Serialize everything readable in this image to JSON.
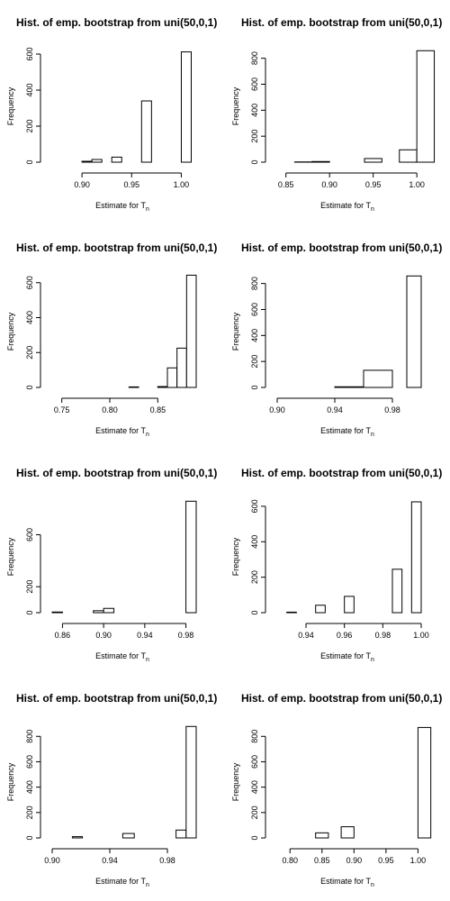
{
  "title_text": "Hist. of emp. bootstrap from uni(50,0,1)",
  "ylabel": "Frequency",
  "xlabel_main": "Estimate for T",
  "xlabel_sub": "n",
  "chart_data": [
    {
      "type": "bar",
      "title": "Hist. of emp. bootstrap from uni(50,0,1)",
      "xlabel": "Estimate for T_n",
      "ylabel": "Frequency",
      "xlim": [
        0.87,
        1.015
      ],
      "ylim": [
        0,
        620
      ],
      "xticks": [
        0.9,
        0.95,
        1.0
      ],
      "xtick_labels": [
        "0.90",
        "0.95",
        "1.00"
      ],
      "yticks": [
        0,
        200,
        400,
        600
      ],
      "ytick_labels": [
        "0",
        "200",
        "400",
        "600"
      ],
      "bins": [
        {
          "x0": 0.88,
          "x1": 0.89,
          "count": 0
        },
        {
          "x0": 0.89,
          "x1": 0.9,
          "count": 0
        },
        {
          "x0": 0.9,
          "x1": 0.91,
          "count": 5
        },
        {
          "x0": 0.91,
          "x1": 0.92,
          "count": 15
        },
        {
          "x0": 0.92,
          "x1": 0.93,
          "count": 0
        },
        {
          "x0": 0.93,
          "x1": 0.94,
          "count": 28
        },
        {
          "x0": 0.94,
          "x1": 0.95,
          "count": 0
        },
        {
          "x0": 0.95,
          "x1": 0.96,
          "count": 0
        },
        {
          "x0": 0.96,
          "x1": 0.97,
          "count": 340
        },
        {
          "x0": 0.97,
          "x1": 0.98,
          "count": 0
        },
        {
          "x0": 0.98,
          "x1": 0.99,
          "count": 0
        },
        {
          "x0": 0.99,
          "x1": 1.0,
          "count": 0
        },
        {
          "x0": 1.0,
          "x1": 1.01,
          "count": 612
        }
      ]
    },
    {
      "type": "bar",
      "title": "Hist. of emp. bootstrap from uni(50,0,1)",
      "xlabel": "Estimate for T_n",
      "ylabel": "Frequency",
      "xlim": [
        0.84,
        1.005
      ],
      "ylim": [
        0,
        860
      ],
      "xticks": [
        0.85,
        0.9,
        0.95,
        1.0
      ],
      "xtick_labels": [
        "0.85",
        "0.90",
        "0.95",
        "1.00"
      ],
      "yticks": [
        0,
        200,
        400,
        600,
        800
      ],
      "ytick_labels": [
        "0",
        "200",
        "400",
        "600",
        "800"
      ],
      "bins": [
        {
          "x0": 0.84,
          "x1": 0.86,
          "count": 0
        },
        {
          "x0": 0.86,
          "x1": 0.88,
          "count": 2
        },
        {
          "x0": 0.88,
          "x1": 0.9,
          "count": 5
        },
        {
          "x0": 0.9,
          "x1": 0.92,
          "count": 0
        },
        {
          "x0": 0.92,
          "x1": 0.94,
          "count": 0
        },
        {
          "x0": 0.94,
          "x1": 0.96,
          "count": 28
        },
        {
          "x0": 0.96,
          "x1": 0.98,
          "count": 0
        },
        {
          "x0": 0.98,
          "x1": 1.0,
          "count": 95
        },
        {
          "x0": 1.0,
          "x1": 1.02,
          "count": 858
        }
      ]
    },
    {
      "type": "bar",
      "title": "Hist. of emp. bootstrap from uni(50,0,1)",
      "xlabel": "Estimate for T_n",
      "ylabel": "Frequency",
      "xlim": [
        0.74,
        0.89
      ],
      "ylim": [
        0,
        640
      ],
      "xticks": [
        0.75,
        0.8,
        0.85
      ],
      "xtick_labels": [
        "0.75",
        "0.80",
        "0.85"
      ],
      "yticks": [
        0,
        200,
        400,
        600
      ],
      "ytick_labels": [
        "0",
        "200",
        "400",
        "600"
      ],
      "bins": [
        {
          "x0": 0.74,
          "x1": 0.75,
          "count": 0
        },
        {
          "x0": 0.75,
          "x1": 0.76,
          "count": 0
        },
        {
          "x0": 0.76,
          "x1": 0.77,
          "count": 0
        },
        {
          "x0": 0.77,
          "x1": 0.78,
          "count": 0
        },
        {
          "x0": 0.78,
          "x1": 0.79,
          "count": 0
        },
        {
          "x0": 0.79,
          "x1": 0.8,
          "count": 0
        },
        {
          "x0": 0.8,
          "x1": 0.81,
          "count": 0
        },
        {
          "x0": 0.81,
          "x1": 0.82,
          "count": 0
        },
        {
          "x0": 0.82,
          "x1": 0.83,
          "count": 3
        },
        {
          "x0": 0.83,
          "x1": 0.84,
          "count": 0
        },
        {
          "x0": 0.84,
          "x1": 0.85,
          "count": 0
        },
        {
          "x0": 0.85,
          "x1": 0.86,
          "count": 5
        },
        {
          "x0": 0.86,
          "x1": 0.87,
          "count": 112
        },
        {
          "x0": 0.87,
          "x1": 0.88,
          "count": 225
        },
        {
          "x0": 0.88,
          "x1": 0.89,
          "count": 643
        }
      ]
    },
    {
      "type": "bar",
      "title": "Hist. of emp. bootstrap from uni(50,0,1)",
      "xlabel": "Estimate for T_n",
      "ylabel": "Frequency",
      "xlim": [
        0.9,
        1.0
      ],
      "ylim": [
        0,
        860
      ],
      "xticks": [
        0.9,
        0.94,
        0.98
      ],
      "xtick_labels": [
        "0.90",
        "0.94",
        "0.98"
      ],
      "yticks": [
        0,
        200,
        400,
        600,
        800
      ],
      "ytick_labels": [
        "0",
        "200",
        "400",
        "600",
        "800"
      ],
      "bins": [
        {
          "x0": 0.9,
          "x1": 0.92,
          "count": 0
        },
        {
          "x0": 0.92,
          "x1": 0.94,
          "count": 0
        },
        {
          "x0": 0.94,
          "x1": 0.96,
          "count": 5
        },
        {
          "x0": 0.96,
          "x1": 0.98,
          "count": 132
        },
        {
          "x0": 0.98,
          "x1": 0.99,
          "count": 0
        },
        {
          "x0": 0.99,
          "x1": 1.0,
          "count": 858
        }
      ]
    },
    {
      "type": "bar",
      "title": "Hist. of emp. bootstrap from uni(50,0,1)",
      "xlabel": "Estimate for T_n",
      "ylabel": "Frequency",
      "xlim": [
        0.85,
        0.99
      ],
      "ylim": [
        0,
        860
      ],
      "xticks": [
        0.86,
        0.9,
        0.94,
        0.98
      ],
      "xtick_labels": [
        "0.86",
        "0.90",
        "0.94",
        "0.98"
      ],
      "yticks": [
        0,
        200,
        600
      ],
      "ytick_labels": [
        "0",
        "200",
        "600"
      ],
      "bins": [
        {
          "x0": 0.85,
          "x1": 0.86,
          "count": 5
        },
        {
          "x0": 0.86,
          "x1": 0.87,
          "count": 0
        },
        {
          "x0": 0.87,
          "x1": 0.88,
          "count": 0
        },
        {
          "x0": 0.88,
          "x1": 0.89,
          "count": 0
        },
        {
          "x0": 0.89,
          "x1": 0.9,
          "count": 15
        },
        {
          "x0": 0.9,
          "x1": 0.91,
          "count": 33
        },
        {
          "x0": 0.91,
          "x1": 0.92,
          "count": 0
        },
        {
          "x0": 0.92,
          "x1": 0.93,
          "count": 0
        },
        {
          "x0": 0.93,
          "x1": 0.94,
          "count": 0
        },
        {
          "x0": 0.94,
          "x1": 0.95,
          "count": 0
        },
        {
          "x0": 0.95,
          "x1": 0.96,
          "count": 0
        },
        {
          "x0": 0.96,
          "x1": 0.97,
          "count": 0
        },
        {
          "x0": 0.97,
          "x1": 0.98,
          "count": 0
        },
        {
          "x0": 0.98,
          "x1": 0.99,
          "count": 858
        }
      ]
    },
    {
      "type": "bar",
      "title": "Hist. of emp. bootstrap from uni(50,0,1)",
      "xlabel": "Estimate for T_n",
      "ylabel": "Frequency",
      "xlim": [
        0.925,
        1.0
      ],
      "ylim": [
        0,
        630
      ],
      "xticks": [
        0.94,
        0.96,
        0.98,
        1.0
      ],
      "xtick_labels": [
        "0.94",
        "0.96",
        "0.98",
        "1.00"
      ],
      "yticks": [
        0,
        200,
        400,
        600
      ],
      "ytick_labels": [
        "0",
        "200",
        "400",
        "600"
      ],
      "bins": [
        {
          "x0": 0.93,
          "x1": 0.935,
          "count": 3
        },
        {
          "x0": 0.935,
          "x1": 0.94,
          "count": 0
        },
        {
          "x0": 0.94,
          "x1": 0.945,
          "count": 0
        },
        {
          "x0": 0.945,
          "x1": 0.95,
          "count": 42
        },
        {
          "x0": 0.95,
          "x1": 0.955,
          "count": 0
        },
        {
          "x0": 0.955,
          "x1": 0.96,
          "count": 0
        },
        {
          "x0": 0.96,
          "x1": 0.965,
          "count": 92
        },
        {
          "x0": 0.965,
          "x1": 0.97,
          "count": 0
        },
        {
          "x0": 0.97,
          "x1": 0.975,
          "count": 0
        },
        {
          "x0": 0.975,
          "x1": 0.98,
          "count": 0
        },
        {
          "x0": 0.98,
          "x1": 0.985,
          "count": 0
        },
        {
          "x0": 0.985,
          "x1": 0.99,
          "count": 245
        },
        {
          "x0": 0.99,
          "x1": 0.995,
          "count": 0
        },
        {
          "x0": 0.995,
          "x1": 1.0,
          "count": 625
        }
      ]
    },
    {
      "type": "bar",
      "title": "Hist. of emp. bootstrap from uni(50,0,1)",
      "xlabel": "Estimate for T_n",
      "ylabel": "Frequency",
      "xlim": [
        0.9,
        1.0
      ],
      "ylim": [
        0,
        880
      ],
      "xticks": [
        0.9,
        0.94,
        0.98
      ],
      "xtick_labels": [
        "0.90",
        "0.94",
        "0.98"
      ],
      "yticks": [
        0,
        200,
        400,
        600,
        800
      ],
      "ytick_labels": [
        "0",
        "200",
        "400",
        "600",
        "800"
      ],
      "bins": [
        {
          "x0": 0.9,
          "x1": 0.907,
          "count": 0
        },
        {
          "x0": 0.907,
          "x1": 0.914,
          "count": 0
        },
        {
          "x0": 0.914,
          "x1": 0.921,
          "count": 10
        },
        {
          "x0": 0.921,
          "x1": 0.928,
          "count": 0
        },
        {
          "x0": 0.928,
          "x1": 0.935,
          "count": 0
        },
        {
          "x0": 0.935,
          "x1": 0.942,
          "count": 0
        },
        {
          "x0": 0.942,
          "x1": 0.949,
          "count": 0
        },
        {
          "x0": 0.949,
          "x1": 0.957,
          "count": 35
        },
        {
          "x0": 0.957,
          "x1": 0.964,
          "count": 0
        },
        {
          "x0": 0.964,
          "x1": 0.971,
          "count": 0
        },
        {
          "x0": 0.971,
          "x1": 0.978,
          "count": 0
        },
        {
          "x0": 0.978,
          "x1": 0.986,
          "count": 0
        },
        {
          "x0": 0.986,
          "x1": 0.993,
          "count": 62
        },
        {
          "x0": 0.993,
          "x1": 1.0,
          "count": 878
        }
      ]
    },
    {
      "type": "bar",
      "title": "Hist. of emp. bootstrap from uni(50,0,1)",
      "xlabel": "Estimate for T_n",
      "ylabel": "Frequency",
      "xlim": [
        0.78,
        1.005
      ],
      "ylim": [
        0,
        880
      ],
      "xticks": [
        0.8,
        0.85,
        0.9,
        0.95,
        1.0
      ],
      "xtick_labels": [
        "0.80",
        "0.85",
        "0.90",
        "0.95",
        "1.00"
      ],
      "yticks": [
        0,
        200,
        400,
        600,
        800
      ],
      "ytick_labels": [
        "0",
        "200",
        "400",
        "600",
        "800"
      ],
      "bins": [
        {
          "x0": 0.78,
          "x1": 0.8,
          "count": 0
        },
        {
          "x0": 0.8,
          "x1": 0.82,
          "count": 0
        },
        {
          "x0": 0.82,
          "x1": 0.84,
          "count": 0
        },
        {
          "x0": 0.84,
          "x1": 0.86,
          "count": 40
        },
        {
          "x0": 0.86,
          "x1": 0.88,
          "count": 0
        },
        {
          "x0": 0.88,
          "x1": 0.9,
          "count": 88
        },
        {
          "x0": 0.9,
          "x1": 0.92,
          "count": 0
        },
        {
          "x0": 0.92,
          "x1": 0.94,
          "count": 0
        },
        {
          "x0": 0.94,
          "x1": 0.96,
          "count": 0
        },
        {
          "x0": 0.96,
          "x1": 0.98,
          "count": 0
        },
        {
          "x0": 0.98,
          "x1": 1.0,
          "count": 0
        },
        {
          "x0": 1.0,
          "x1": 1.02,
          "count": 870
        }
      ]
    }
  ]
}
